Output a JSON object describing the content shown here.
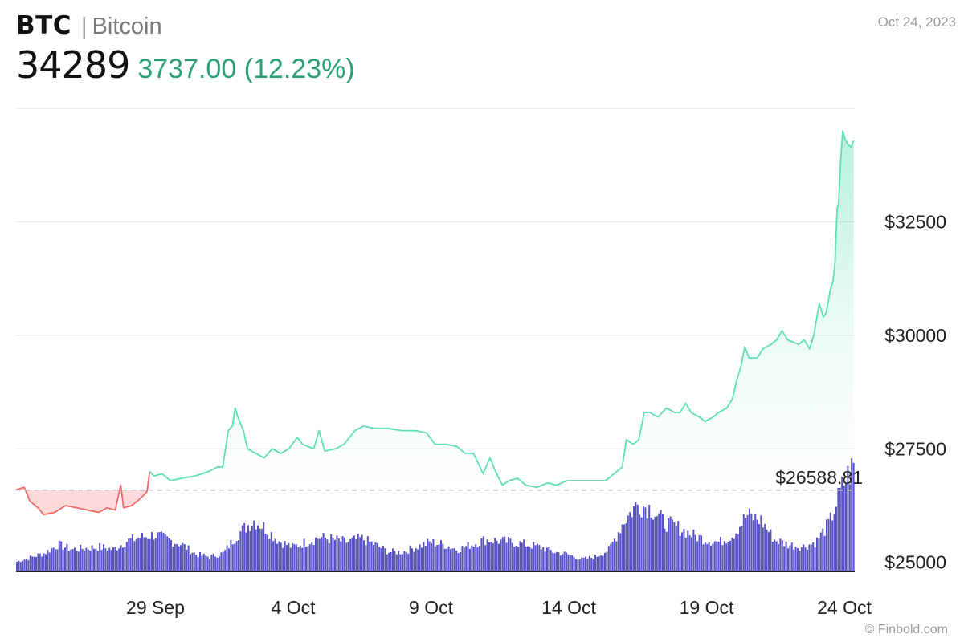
{
  "header": {
    "ticker": "BTC",
    "separator": "|",
    "name": "Bitcoin",
    "price": "34289",
    "change": "3737.00 (12.23%)",
    "date": "Oct 24, 2023"
  },
  "credit": "© Finbold.com",
  "colors": {
    "up_line": "#5fe0b2",
    "down_line": "#ef6b6b",
    "down_fill": "#fbd3d3",
    "volume": "#5651c8",
    "change_text": "#2e9e78"
  },
  "chart_data": {
    "type": "line",
    "title": "",
    "xlabel": "",
    "ylabel": "",
    "ylim": [
      24800,
      35000
    ],
    "yticks": [
      {
        "value": 25000,
        "label": "$25000"
      },
      {
        "value": 27500,
        "label": "$27500"
      },
      {
        "value": 30000,
        "label": "$30000"
      },
      {
        "value": 32500,
        "label": "$32500"
      }
    ],
    "xticks": [
      {
        "day": 5,
        "label": "29 Sep"
      },
      {
        "day": 10,
        "label": "4 Oct"
      },
      {
        "day": 15,
        "label": "9 Oct"
      },
      {
        "day": 20,
        "label": "14 Oct"
      },
      {
        "day": 25,
        "label": "19 Oct"
      },
      {
        "day": 30,
        "label": "24 Oct"
      }
    ],
    "xlim": [
      0,
      30
    ],
    "reference": {
      "value": 26588.81,
      "label": "$26588.81"
    },
    "price_points": [
      [
        0,
        26600
      ],
      [
        0.3,
        26650
      ],
      [
        0.5,
        26350
      ],
      [
        0.8,
        26200
      ],
      [
        1.0,
        26050
      ],
      [
        1.4,
        26100
      ],
      [
        1.8,
        26250
      ],
      [
        2.2,
        26200
      ],
      [
        2.6,
        26150
      ],
      [
        3.0,
        26100
      ],
      [
        3.3,
        26200
      ],
      [
        3.6,
        26150
      ],
      [
        3.8,
        26700
      ],
      [
        3.9,
        26200
      ],
      [
        4.2,
        26250
      ],
      [
        4.5,
        26400
      ],
      [
        4.75,
        26550
      ],
      [
        4.85,
        27000
      ],
      [
        5.0,
        26900
      ],
      [
        5.3,
        26950
      ],
      [
        5.6,
        26800
      ],
      [
        6.0,
        26850
      ],
      [
        6.5,
        26900
      ],
      [
        7.0,
        27000
      ],
      [
        7.3,
        27100
      ],
      [
        7.5,
        27100
      ],
      [
        7.7,
        27900
      ],
      [
        7.85,
        28000
      ],
      [
        7.95,
        28400
      ],
      [
        8.05,
        28200
      ],
      [
        8.25,
        27900
      ],
      [
        8.4,
        27500
      ],
      [
        8.7,
        27400
      ],
      [
        9.0,
        27300
      ],
      [
        9.3,
        27500
      ],
      [
        9.6,
        27400
      ],
      [
        9.9,
        27500
      ],
      [
        10.2,
        27750
      ],
      [
        10.4,
        27600
      ],
      [
        10.8,
        27500
      ],
      [
        11.0,
        27900
      ],
      [
        11.2,
        27450
      ],
      [
        11.6,
        27500
      ],
      [
        11.9,
        27600
      ],
      [
        12.1,
        27750
      ],
      [
        12.3,
        27900
      ],
      [
        12.6,
        28000
      ],
      [
        13.0,
        27950
      ],
      [
        13.5,
        27950
      ],
      [
        14.0,
        27900
      ],
      [
        14.5,
        27900
      ],
      [
        14.9,
        27850
      ],
      [
        15.2,
        27600
      ],
      [
        15.6,
        27600
      ],
      [
        16.0,
        27550
      ],
      [
        16.3,
        27400
      ],
      [
        16.6,
        27400
      ],
      [
        16.95,
        26950
      ],
      [
        17.2,
        27300
      ],
      [
        17.4,
        27000
      ],
      [
        17.65,
        26700
      ],
      [
        17.9,
        26800
      ],
      [
        18.2,
        26850
      ],
      [
        18.5,
        26700
      ],
      [
        18.9,
        26650
      ],
      [
        19.3,
        26750
      ],
      [
        19.6,
        26700
      ],
      [
        20.0,
        26800
      ],
      [
        20.5,
        26800
      ],
      [
        21.0,
        26800
      ],
      [
        21.4,
        26800
      ],
      [
        21.7,
        26950
      ],
      [
        22.0,
        27100
      ],
      [
        22.15,
        27700
      ],
      [
        22.4,
        27600
      ],
      [
        22.6,
        27700
      ],
      [
        22.8,
        28300
      ],
      [
        23.0,
        28300
      ],
      [
        23.3,
        28200
      ],
      [
        23.6,
        28400
      ],
      [
        23.9,
        28300
      ],
      [
        24.1,
        28300
      ],
      [
        24.3,
        28500
      ],
      [
        24.5,
        28300
      ],
      [
        24.8,
        28200
      ],
      [
        25.0,
        28100
      ],
      [
        25.3,
        28200
      ],
      [
        25.5,
        28300
      ],
      [
        25.8,
        28400
      ],
      [
        26.0,
        28600
      ],
      [
        26.15,
        29000
      ],
      [
        26.3,
        29300
      ],
      [
        26.45,
        29750
      ],
      [
        26.6,
        29500
      ],
      [
        26.9,
        29500
      ],
      [
        27.1,
        29700
      ],
      [
        27.4,
        29800
      ],
      [
        27.6,
        29900
      ],
      [
        27.8,
        30100
      ],
      [
        28.0,
        29900
      ],
      [
        28.2,
        29850
      ],
      [
        28.4,
        29800
      ],
      [
        28.6,
        29900
      ],
      [
        28.8,
        29700
      ],
      [
        28.95,
        30000
      ],
      [
        29.15,
        30700
      ],
      [
        29.3,
        30400
      ],
      [
        29.4,
        30500
      ],
      [
        29.55,
        31000
      ],
      [
        29.65,
        31200
      ],
      [
        29.72,
        31600
      ],
      [
        29.8,
        32800
      ],
      [
        29.85,
        32900
      ],
      [
        29.92,
        33800
      ],
      [
        30.0,
        34500
      ],
      [
        30.1,
        34300
      ],
      [
        30.2,
        34200
      ],
      [
        30.3,
        34150
      ],
      [
        30.4,
        34289
      ]
    ],
    "volume": {
      "description": "Relative trading volume per period (0-1 scale)",
      "points": [
        [
          0,
          0.08
        ],
        [
          1,
          0.15
        ],
        [
          1.5,
          0.22
        ],
        [
          2,
          0.18
        ],
        [
          3,
          0.2
        ],
        [
          3.5,
          0.18
        ],
        [
          4,
          0.25
        ],
        [
          4.5,
          0.28
        ],
        [
          5,
          0.3
        ],
        [
          5.5,
          0.26
        ],
        [
          6,
          0.22
        ],
        [
          6.5,
          0.14
        ],
        [
          7,
          0.12
        ],
        [
          7.5,
          0.15
        ],
        [
          8,
          0.3
        ],
        [
          8.6,
          0.42
        ],
        [
          9,
          0.36
        ],
        [
          9.5,
          0.25
        ],
        [
          10,
          0.2
        ],
        [
          10.5,
          0.24
        ],
        [
          11,
          0.28
        ],
        [
          11.5,
          0.26
        ],
        [
          12,
          0.24
        ],
        [
          12.5,
          0.27
        ],
        [
          13,
          0.22
        ],
        [
          13.5,
          0.16
        ],
        [
          14,
          0.16
        ],
        [
          14.5,
          0.2
        ],
        [
          15,
          0.24
        ],
        [
          15.5,
          0.22
        ],
        [
          16,
          0.18
        ],
        [
          16.5,
          0.22
        ],
        [
          17,
          0.26
        ],
        [
          17.5,
          0.25
        ],
        [
          18,
          0.24
        ],
        [
          18.5,
          0.22
        ],
        [
          19,
          0.2
        ],
        [
          19.5,
          0.16
        ],
        [
          20,
          0.14
        ],
        [
          20.5,
          0.1
        ],
        [
          21,
          0.12
        ],
        [
          21.5,
          0.18
        ],
        [
          22,
          0.4
        ],
        [
          22.5,
          0.55
        ],
        [
          23,
          0.52
        ],
        [
          23.5,
          0.4
        ],
        [
          24,
          0.36
        ],
        [
          24.5,
          0.3
        ],
        [
          25,
          0.26
        ],
        [
          25.5,
          0.24
        ],
        [
          26,
          0.3
        ],
        [
          26.5,
          0.46
        ],
        [
          27,
          0.42
        ],
        [
          27.5,
          0.26
        ],
        [
          28,
          0.22
        ],
        [
          28.5,
          0.2
        ],
        [
          29,
          0.24
        ],
        [
          29.5,
          0.4
        ],
        [
          30,
          0.72
        ],
        [
          30.4,
          0.88
        ]
      ]
    }
  }
}
